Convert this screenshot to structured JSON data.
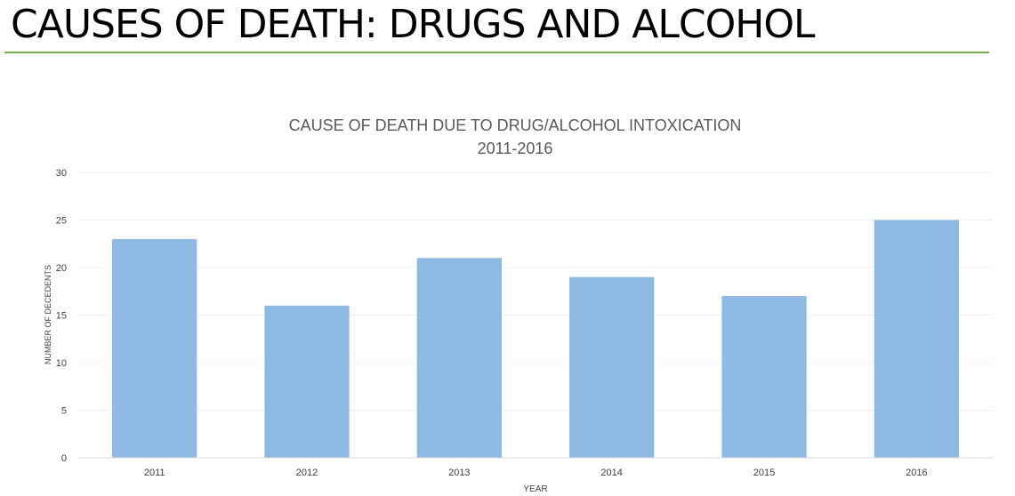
{
  "slide": {
    "title": "CAUSES OF DEATH: DRUGS AND ALCOHOL",
    "accent_color": "#7dab4e"
  },
  "chart_data": {
    "type": "bar",
    "title": "CAUSE OF DEATH DUE TO DRUG/ALCOHOL INTOXICATION",
    "subtitle": "2011-2016",
    "xlabel": "YEAR",
    "ylabel": "NUMBER OF DECEDENTS",
    "categories": [
      "2011",
      "2012",
      "2013",
      "2014",
      "2015",
      "2016"
    ],
    "values": [
      23,
      16,
      21,
      19,
      17,
      25
    ],
    "ylim": [
      0,
      30
    ],
    "yticks": [
      0,
      5,
      10,
      15,
      20,
      25,
      30
    ],
    "grid": true,
    "bar_color": "#8db9e2"
  }
}
